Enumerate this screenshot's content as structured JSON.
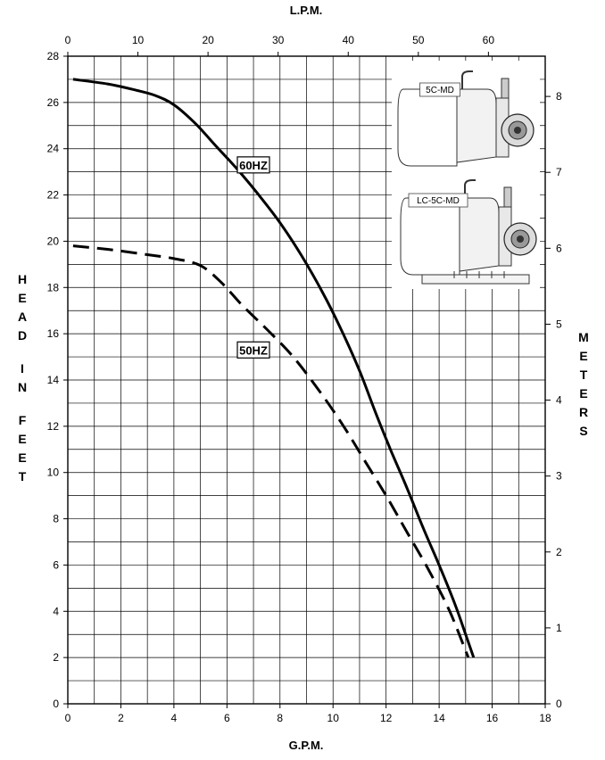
{
  "chart_data": {
    "type": "line",
    "title": "",
    "xlabel": "G.P.M.",
    "x2label": "L.P.M.",
    "ylabel": "HEAD IN FEET",
    "y2label": "METERS",
    "xlim": [
      0,
      18
    ],
    "ylim": [
      0,
      28
    ],
    "x2lim": [
      0,
      68.1
    ],
    "y2lim": [
      0,
      8.53
    ],
    "xticks": [
      "0",
      "2",
      "4",
      "6",
      "8",
      "10",
      "12",
      "14",
      "16",
      "18"
    ],
    "yticks": [
      "0",
      "2",
      "4",
      "6",
      "8",
      "10",
      "12",
      "14",
      "16",
      "18",
      "20",
      "22",
      "24",
      "26",
      "28"
    ],
    "x2ticks": [
      "0",
      "10",
      "20",
      "30",
      "40",
      "50",
      "60"
    ],
    "y2ticks": [
      "0",
      "1",
      "2",
      "3",
      "4",
      "5",
      "6",
      "7",
      "8"
    ],
    "grid": true,
    "series": [
      {
        "name": "60HZ",
        "style": "solid",
        "x": [
          0.2,
          1.5,
          2.5,
          3.3,
          4.0,
          4.8,
          5.6,
          6.4,
          7.2,
          8.0,
          8.8,
          9.6,
          10.3,
          11.0,
          11.6,
          12.2,
          12.8,
          13.4,
          14.0,
          14.6,
          15.0,
          15.3
        ],
        "y": [
          27.0,
          26.8,
          26.55,
          26.3,
          25.9,
          25.1,
          24.1,
          23.1,
          22.0,
          20.8,
          19.4,
          17.8,
          16.2,
          14.4,
          12.6,
          10.9,
          9.3,
          7.6,
          6.0,
          4.3,
          3.0,
          2.0
        ]
      },
      {
        "name": "50HZ",
        "style": "dashed",
        "x": [
          0.2,
          1.5,
          2.8,
          4.0,
          5.0,
          5.8,
          6.6,
          7.5,
          8.5,
          9.5,
          10.4,
          11.2,
          12.0,
          12.8,
          13.6,
          14.4,
          15.1
        ],
        "y": [
          19.8,
          19.65,
          19.45,
          19.25,
          18.95,
          18.2,
          17.2,
          16.2,
          15.0,
          13.5,
          12.0,
          10.5,
          9.0,
          7.4,
          5.8,
          4.0,
          2.0
        ]
      }
    ],
    "inset_labels": [
      "5C-MD",
      "LC-5C-MD"
    ]
  }
}
